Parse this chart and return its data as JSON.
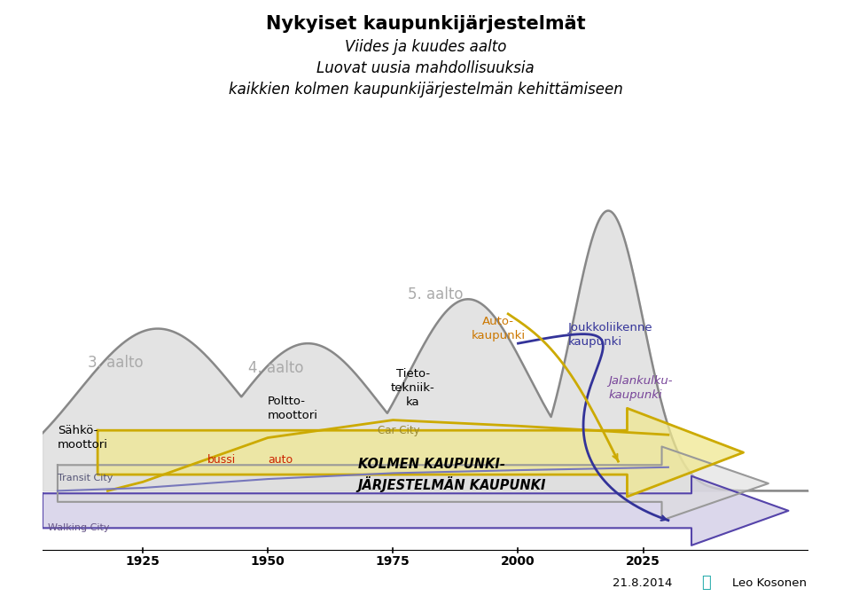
{
  "title_line1": "Nykyiset kaupunkijärjestelmät",
  "title_line2": "Viides ja kuudes aalto",
  "title_line3": "Luovat uusia mahdollisuuksia",
  "title_line4": "kaikkien kolmen kaupunkijärjestelmän kehittämiseen",
  "wave_color": "#888888",
  "wave_fill_color": "#cccccc",
  "wave_fill_alpha": 0.55,
  "bg_color": "#ffffff",
  "aalto3_label": "3. aalto",
  "aalto4_label": "4. aalto",
  "aalto5_label": "5. aalto",
  "sahko_label": "Sähkö-\nmoottori",
  "poltto_label": "Poltto-\nmoottori",
  "tieto_label": "Tieto-\ntekniik-\nka",
  "auto_label": "Auto-\nkaupunki",
  "joukko_label": "Joukkoliikenne\nkaupunki",
  "jalankulku_label": "Jalankulku-\nkaupunki",
  "bussi_label": "bussi",
  "auto_word_label": "auto",
  "car_city_label": "Car City",
  "transit_city_label": "Transit City",
  "walking_city_label": "Walking City",
  "kolmen_label": "KOLMEN KAUPUNKI-\nJÄRJESTELMÄN KAUPUNKI",
  "date_label": "21.8.2014",
  "author_label": "Leo Kosonen",
  "xticks": [
    1925,
    1950,
    1975,
    2000,
    2025
  ],
  "yellow_color": "#ccaa00",
  "yellow_fill": "#f0e890",
  "gray_color": "#999999",
  "gray_fill": "#dddddd",
  "purple_color": "#5544aa",
  "purple_fill": "#b8b0d8",
  "red_label_color": "#cc2200",
  "orange_label_color": "#cc7700",
  "dark_blue_label_color": "#333399",
  "purple_label_color": "#774499",
  "joukko_line_color": "#333399",
  "auto_curve_color": "#ccaa00"
}
